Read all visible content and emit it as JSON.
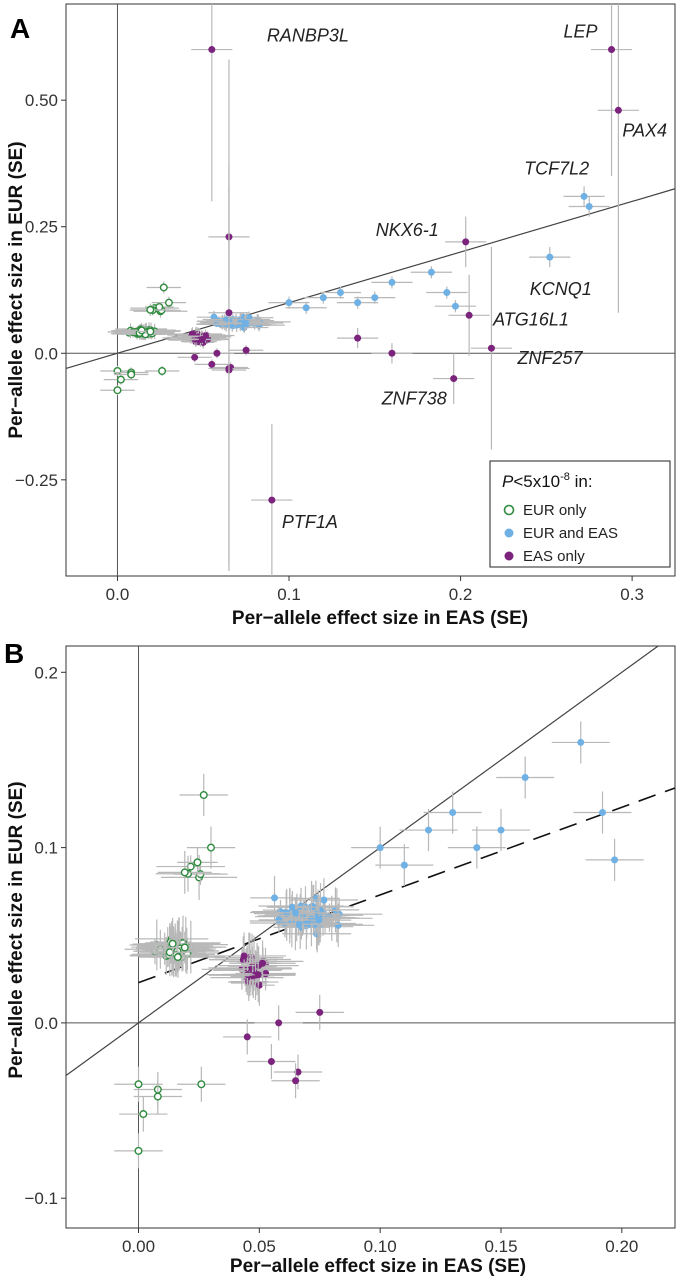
{
  "colors": {
    "eur_only": "#2e8b3e",
    "eur_and_eas": "#6fb1e4",
    "eas_only": "#7b237d",
    "error_bar": "#b8b8b8",
    "axis": "#555555"
  },
  "legend": {
    "title_p": "P",
    "title_rest": "<5x10",
    "title_sup": "-8",
    "title_in": " in:",
    "items": [
      "EUR only",
      "EUR and EAS",
      "EAS only"
    ]
  },
  "chart_data": [
    {
      "panel": "A",
      "type": "scatter",
      "xlabel": "Per−allele effect size in EAS (SE)",
      "ylabel": "Per−allele effect size in EUR (SE)",
      "xlim": [
        -0.03,
        0.325
      ],
      "ylim": [
        -0.44,
        0.69
      ],
      "xticks": [
        0.0,
        0.1,
        0.2,
        0.3
      ],
      "xtick_labels": [
        "0.0",
        "0.1",
        "0.2",
        "0.3"
      ],
      "yticks": [
        -0.25,
        0.0,
        0.25,
        0.5
      ],
      "ytick_labels": [
        "−0.25",
        "0.0",
        "0.25",
        "0.50"
      ],
      "identity_line": true,
      "annotations": [
        {
          "label": "RANBP3L",
          "x": 0.055,
          "y": 0.6,
          "series": "eas_only"
        },
        {
          "label": "LEP",
          "x": 0.288,
          "y": 0.6,
          "series": "eas_only"
        },
        {
          "label": "PAX4",
          "x": 0.292,
          "y": 0.48,
          "series": "eas_only"
        },
        {
          "label": "TCF7L2",
          "x": 0.272,
          "y": 0.31,
          "series": "eur_and_eas"
        },
        {
          "label": "NKX6-1",
          "x": 0.203,
          "y": 0.22,
          "series": "eas_only"
        },
        {
          "label": "KCNQ1",
          "x": 0.252,
          "y": 0.19,
          "series": "eur_and_eas"
        },
        {
          "label": "ATG16L1",
          "x": 0.205,
          "y": 0.075,
          "series": "eas_only"
        },
        {
          "label": "ZNF257",
          "x": 0.218,
          "y": 0.01,
          "series": "eas_only"
        },
        {
          "label": "ZNF738",
          "x": 0.196,
          "y": -0.05,
          "series": "eas_only"
        },
        {
          "label": "PTF1A",
          "x": 0.09,
          "y": -0.29,
          "series": "eas_only"
        }
      ]
    },
    {
      "panel": "B",
      "type": "scatter",
      "xlabel": "Per−allele effect size in EAS (SE)",
      "ylabel": "Per−allele effect size in EUR (SE)",
      "xlim": [
        -0.03,
        0.222
      ],
      "ylim": [
        -0.117,
        0.215
      ],
      "xticks": [
        0.0,
        0.05,
        0.1,
        0.15,
        0.2
      ],
      "xtick_labels": [
        "0.00",
        "0.05",
        "0.10",
        "0.15",
        "0.20"
      ],
      "yticks": [
        -0.1,
        0.0,
        0.1,
        0.2
      ],
      "ytick_labels": [
        "−0.1",
        "0.0",
        "0.1",
        "0.2"
      ],
      "identity_line": true,
      "regression_line": {
        "intercept": 0.023,
        "slope": 0.5,
        "style": "dashed"
      }
    }
  ]
}
